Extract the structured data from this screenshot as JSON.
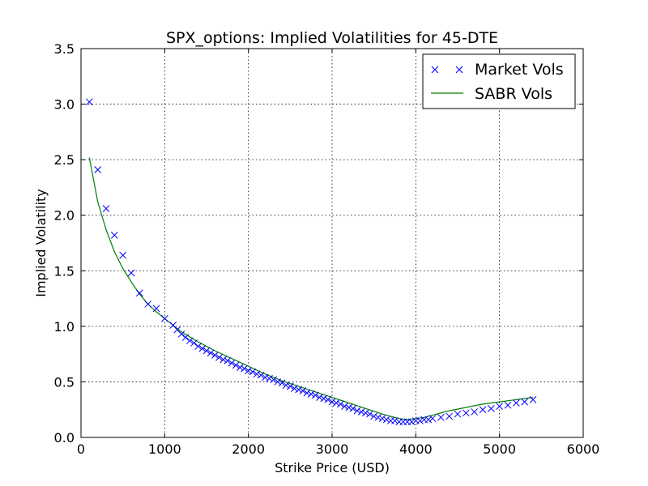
{
  "chart_data": {
    "type": "line",
    "title": "SPX_options: Implied Volatilities for 45-DTE",
    "xlabel": "Strike Price (USD)",
    "ylabel": "Implied Volatility",
    "xlim": [
      0,
      6000
    ],
    "ylim": [
      0.0,
      3.5
    ],
    "xticks": [
      0,
      1000,
      2000,
      3000,
      4000,
      5000,
      6000
    ],
    "xtick_labels": [
      "0",
      "1000",
      "2000",
      "3000",
      "4000",
      "5000",
      "6000"
    ],
    "yticks": [
      0.0,
      0.5,
      1.0,
      1.5,
      2.0,
      2.5,
      3.0,
      3.5
    ],
    "ytick_labels": [
      "0.0",
      "0.5",
      "1.0",
      "1.5",
      "2.0",
      "2.5",
      "3.0",
      "3.5"
    ],
    "grid": true,
    "legend_position": "top-right",
    "series": [
      {
        "name": "Market Vols",
        "style": "marker-x",
        "color": "#0000ff",
        "x": [
          100,
          200,
          300,
          400,
          500,
          600,
          700,
          800,
          900,
          1000,
          1100,
          1150,
          1200,
          1250,
          1300,
          1350,
          1400,
          1450,
          1500,
          1550,
          1600,
          1650,
          1700,
          1750,
          1800,
          1850,
          1900,
          1950,
          2000,
          2050,
          2100,
          2150,
          2200,
          2250,
          2300,
          2350,
          2400,
          2450,
          2500,
          2550,
          2600,
          2650,
          2700,
          2750,
          2800,
          2850,
          2900,
          2950,
          3000,
          3050,
          3100,
          3150,
          3200,
          3250,
          3300,
          3350,
          3400,
          3450,
          3500,
          3550,
          3600,
          3650,
          3700,
          3750,
          3800,
          3850,
          3900,
          3950,
          4000,
          4050,
          4100,
          4150,
          4200,
          4300,
          4400,
          4500,
          4600,
          4700,
          4800,
          4900,
          5000,
          5100,
          5200,
          5300,
          5400
        ],
        "y": [
          3.02,
          2.41,
          2.06,
          1.82,
          1.64,
          1.48,
          1.3,
          1.2,
          1.16,
          1.07,
          1.01,
          0.97,
          0.93,
          0.9,
          0.87,
          0.85,
          0.82,
          0.8,
          0.78,
          0.76,
          0.74,
          0.72,
          0.7,
          0.69,
          0.67,
          0.65,
          0.63,
          0.62,
          0.6,
          0.59,
          0.57,
          0.56,
          0.54,
          0.53,
          0.52,
          0.5,
          0.49,
          0.47,
          0.46,
          0.44,
          0.43,
          0.42,
          0.4,
          0.39,
          0.38,
          0.36,
          0.35,
          0.34,
          0.32,
          0.31,
          0.3,
          0.28,
          0.27,
          0.26,
          0.24,
          0.23,
          0.22,
          0.21,
          0.19,
          0.18,
          0.17,
          0.16,
          0.15,
          0.15,
          0.14,
          0.14,
          0.14,
          0.14,
          0.15,
          0.15,
          0.16,
          0.16,
          0.17,
          0.18,
          0.19,
          0.21,
          0.22,
          0.23,
          0.25,
          0.26,
          0.28,
          0.29,
          0.31,
          0.32,
          0.34
        ]
      },
      {
        "name": "SABR Vols",
        "style": "line",
        "color": "#008000",
        "x": [
          100,
          200,
          300,
          400,
          500,
          600,
          700,
          800,
          900,
          1000,
          1200,
          1400,
          1600,
          1800,
          2000,
          2200,
          2400,
          2600,
          2800,
          3000,
          3200,
          3400,
          3600,
          3700,
          3800,
          3900,
          4000,
          4100,
          4200,
          4400,
          4600,
          4800,
          5000,
          5200,
          5400
        ],
        "y": [
          2.52,
          2.12,
          1.87,
          1.67,
          1.52,
          1.4,
          1.29,
          1.2,
          1.13,
          1.07,
          0.95,
          0.86,
          0.78,
          0.71,
          0.64,
          0.57,
          0.51,
          0.46,
          0.41,
          0.36,
          0.31,
          0.26,
          0.21,
          0.19,
          0.17,
          0.16,
          0.17,
          0.18,
          0.2,
          0.24,
          0.27,
          0.3,
          0.32,
          0.34,
          0.36
        ]
      }
    ]
  }
}
